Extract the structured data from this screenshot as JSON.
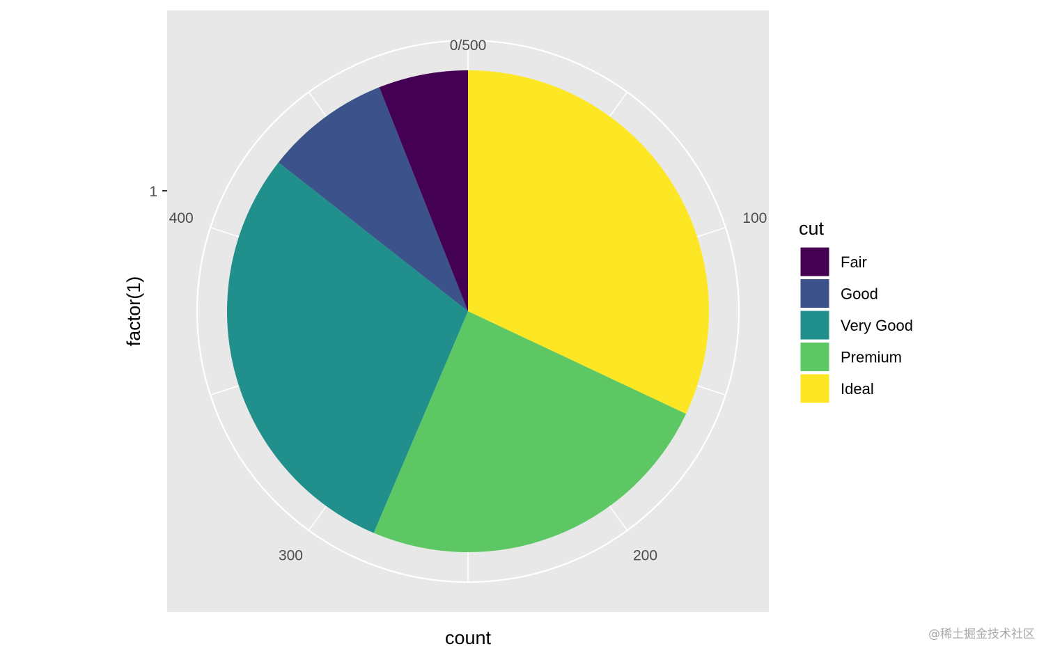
{
  "chart_data": {
    "type": "pie",
    "xlabel": "count",
    "ylabel": "factor(1)",
    "y_tick_labels": [
      "1"
    ],
    "angular_ticks": [
      "0/500",
      "100",
      "200",
      "300",
      "400"
    ],
    "angular_tick_values": [
      0,
      100,
      200,
      300,
      400
    ],
    "angular_max": 500,
    "legend": {
      "title": "cut",
      "position": "right"
    },
    "categories": [
      "Fair",
      "Good",
      "Very Good",
      "Premium",
      "Ideal"
    ],
    "values": [
      30,
      42,
      146,
      122,
      160
    ],
    "colors": [
      "#440154",
      "#3B528B",
      "#21908C",
      "#5DC863",
      "#FDE725"
    ],
    "grid": true,
    "panel_background": "#EBEBEB",
    "grid_color": "#FFFFFF"
  },
  "watermark": "@稀土掘金技术社区"
}
